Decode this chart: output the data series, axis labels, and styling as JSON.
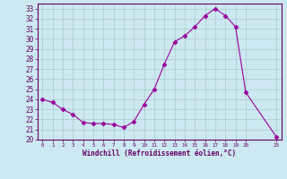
{
  "x_indices": [
    0,
    1,
    2,
    3,
    4,
    5,
    6,
    7,
    8,
    9,
    10,
    11,
    12,
    13,
    14,
    15,
    16,
    17,
    18,
    19,
    20,
    23
  ],
  "y": [
    24.0,
    23.7,
    23.0,
    22.5,
    21.7,
    21.6,
    21.6,
    21.5,
    21.2,
    21.8,
    23.5,
    25.0,
    27.5,
    29.7,
    30.3,
    31.2,
    32.3,
    33.0,
    32.3,
    31.2,
    24.7,
    20.3
  ],
  "line_color": "#990099",
  "marker": "D",
  "marker_size": 2.5,
  "bg_color": "#cce8f0",
  "grid_color": "#aacccc",
  "xlabel": "Windchill (Refroidissement éolien,°C)",
  "xlabel_color": "#660066",
  "xlim": [
    -0.5,
    23.5
  ],
  "ylim": [
    20,
    33.5
  ],
  "yticks": [
    20,
    21,
    22,
    23,
    24,
    25,
    26,
    27,
    28,
    29,
    30,
    31,
    32,
    33
  ],
  "xtick_positions": [
    0,
    1,
    2,
    3,
    4,
    5,
    6,
    7,
    8,
    9,
    10,
    11,
    12,
    13,
    14,
    15,
    16,
    17,
    18,
    19,
    20,
    23
  ],
  "xtick_labels": [
    "0",
    "1",
    "2",
    "3",
    "4",
    "5",
    "6",
    "7",
    "8",
    "9",
    "10",
    "11",
    "12",
    "13",
    "14",
    "15",
    "16",
    "17",
    "18",
    "19",
    "20",
    "23"
  ],
  "tick_color": "#660066",
  "spine_color": "#660066",
  "label_fontsize": 5.5,
  "xlabel_fontsize": 5.5
}
